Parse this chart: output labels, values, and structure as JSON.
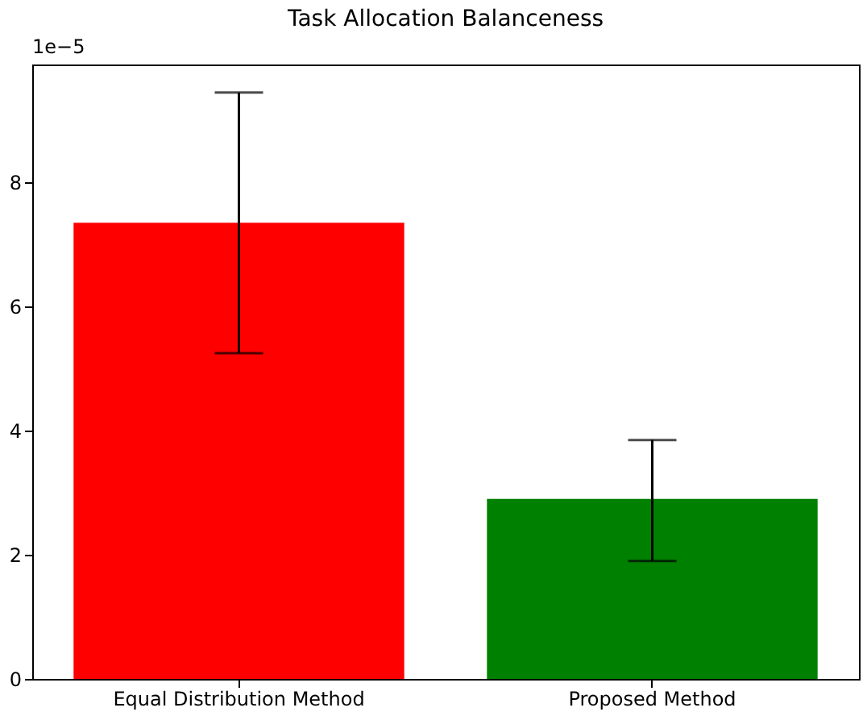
{
  "chart_data": {
    "type": "bar",
    "title": "Task Allocation Balanceness",
    "categories": [
      "Equal Distribution Method",
      "Proposed Method"
    ],
    "values": [
      7.35,
      2.9
    ],
    "colors": [
      "#ff0000",
      "#008000"
    ],
    "errors": [
      [
        5.25,
        9.45
      ],
      [
        1.9,
        3.85
      ]
    ],
    "ylim": [
      0,
      9.9
    ],
    "yticks": [
      0,
      2,
      4,
      6,
      8
    ],
    "annotations": [
      "1e−5"
    ],
    "grid": false
  }
}
